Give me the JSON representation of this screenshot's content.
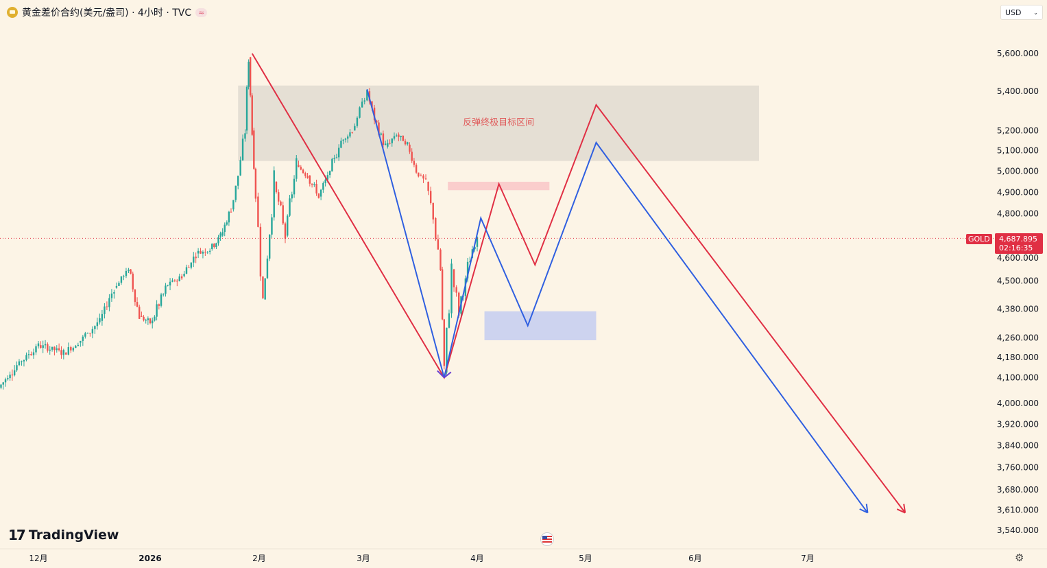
{
  "header": {
    "symbol_title": "黄金差价合约(美元/盎司) · 4小时 · TVC",
    "currency": "USD"
  },
  "branding": {
    "logo_text": "TradingView"
  },
  "last_price": {
    "symbol": "GOLD",
    "price": "4,687.895",
    "countdown": "02:16:35",
    "value": 4687.895
  },
  "colors": {
    "background": "#fcf4e6",
    "up_candle": "#26a69a",
    "down_candle": "#ef5350",
    "red_path": "#e02f44",
    "blue_path": "#2f5fe0",
    "target_zone": "#e0dbd0",
    "pink_zone": "#f9c9c9",
    "blue_zone": "#c8cff0"
  },
  "chart_data": {
    "type": "line",
    "title": "黄金差价合约(美元/盎司) · 4小时 · TVC",
    "scale": "log",
    "ylim": [
      3500,
      5750
    ],
    "y_ticks": [
      5600,
      5400,
      5200,
      5100,
      5000,
      4900,
      4800,
      4600,
      4500,
      4380,
      4260,
      4180,
      4100,
      4000,
      3920,
      3840,
      3760,
      3680,
      3610,
      3540
    ],
    "y_tick_labels": [
      "5,600.000",
      "5,400.000",
      "5,200.000",
      "5,100.000",
      "5,000.000",
      "4,900.000",
      "4,800.000",
      "4,600.000",
      "4,500.000",
      "4,380.000",
      "4,260.000",
      "4,180.000",
      "4,100.000",
      "4,000.000",
      "3,920.000",
      "3,840.000",
      "3,760.000",
      "3,680.000",
      "3,610.000",
      "3,540.000"
    ],
    "x_ticks": [
      {
        "label": "12月",
        "date": "2025-12-01"
      },
      {
        "label": "2026",
        "date": "2026-01-01"
      },
      {
        "label": "2月",
        "date": "2026-02-01"
      },
      {
        "label": "3月",
        "date": "2026-03-01"
      },
      {
        "label": "4月",
        "date": "2026-04-01"
      },
      {
        "label": "5月",
        "date": "2026-05-01"
      },
      {
        "label": "6月",
        "date": "2026-06-01"
      },
      {
        "label": "7月",
        "date": "2026-07-01"
      }
    ],
    "price_series": [
      {
        "date": "2025-11-20",
        "price": 4060
      },
      {
        "date": "2025-11-25",
        "price": 4150
      },
      {
        "date": "2025-12-01",
        "price": 4230
      },
      {
        "date": "2025-12-08",
        "price": 4200
      },
      {
        "date": "2025-12-12",
        "price": 4240
      },
      {
        "date": "2025-12-18",
        "price": 4330
      },
      {
        "date": "2025-12-22",
        "price": 4470
      },
      {
        "date": "2025-12-26",
        "price": 4550
      },
      {
        "date": "2025-12-29",
        "price": 4350
      },
      {
        "date": "2026-01-01",
        "price": 4320
      },
      {
        "date": "2026-01-06",
        "price": 4480
      },
      {
        "date": "2026-01-10",
        "price": 4520
      },
      {
        "date": "2026-01-14",
        "price": 4620
      },
      {
        "date": "2026-01-18",
        "price": 4640
      },
      {
        "date": "2026-01-21",
        "price": 4700
      },
      {
        "date": "2026-01-24",
        "price": 4820
      },
      {
        "date": "2026-01-26",
        "price": 4980
      },
      {
        "date": "2026-01-28",
        "price": 5200
      },
      {
        "date": "2026-01-29",
        "price": 5580
      },
      {
        "date": "2026-01-30",
        "price": 5200
      },
      {
        "date": "2026-01-31",
        "price": 4880
      },
      {
        "date": "2026-02-02",
        "price": 4420
      },
      {
        "date": "2026-02-05",
        "price": 4950
      },
      {
        "date": "2026-02-08",
        "price": 4700
      },
      {
        "date": "2026-02-11",
        "price": 5030
      },
      {
        "date": "2026-02-14",
        "price": 4980
      },
      {
        "date": "2026-02-17",
        "price": 4880
      },
      {
        "date": "2026-02-20",
        "price": 5000
      },
      {
        "date": "2026-02-23",
        "price": 5150
      },
      {
        "date": "2026-02-26",
        "price": 5200
      },
      {
        "date": "2026-03-02",
        "price": 5400
      },
      {
        "date": "2026-03-04",
        "price": 5250
      },
      {
        "date": "2026-03-07",
        "price": 5120
      },
      {
        "date": "2026-03-10",
        "price": 5180
      },
      {
        "date": "2026-03-13",
        "price": 5130
      },
      {
        "date": "2026-03-16",
        "price": 4980
      },
      {
        "date": "2026-03-18",
        "price": 4950
      },
      {
        "date": "2026-03-20",
        "price": 4780
      },
      {
        "date": "2026-03-22",
        "price": 4550
      },
      {
        "date": "2026-03-23",
        "price": 4120
      },
      {
        "date": "2026-03-25",
        "price": 4550
      },
      {
        "date": "2026-03-27",
        "price": 4360
      },
      {
        "date": "2026-03-30",
        "price": 4600
      },
      {
        "date": "2026-04-01",
        "price": 4687.895
      }
    ],
    "series": [
      {
        "color": "#e02f44",
        "points": [
          {
            "date": "2026-01-30",
            "price": 5600
          },
          {
            "date": "2026-03-23",
            "price": 4100
          },
          {
            "date": "2026-04-07",
            "price": 4940
          },
          {
            "date": "2026-04-17",
            "price": 4570
          },
          {
            "date": "2026-05-04",
            "price": 5330
          },
          {
            "date": "2026-07-27",
            "price": 3600
          }
        ]
      },
      {
        "color": "#2f5fe0",
        "points": [
          {
            "date": "2026-03-02",
            "price": 5410
          },
          {
            "date": "2026-03-23",
            "price": 4100
          },
          {
            "date": "2026-04-02",
            "price": 4780
          },
          {
            "date": "2026-04-15",
            "price": 4310
          },
          {
            "date": "2026-05-04",
            "price": 5140
          },
          {
            "date": "2026-07-17",
            "price": 3600
          }
        ]
      }
    ],
    "zones": [
      {
        "label": "反弹终极目标区间",
        "from": "2026-01-26",
        "to": "2026-06-18",
        "price_low": 5050,
        "price_high": 5430,
        "color": "#e0dbd0"
      },
      {
        "label": "",
        "from": "2026-03-24",
        "to": "2026-04-21",
        "price_low": 4910,
        "price_high": 4950,
        "color": "#f9c9c9"
      },
      {
        "label": "",
        "from": "2026-04-03",
        "to": "2026-05-04",
        "price_low": 4250,
        "price_high": 4370,
        "color": "#c8cff0"
      }
    ],
    "current_price_line": 4687.895
  }
}
